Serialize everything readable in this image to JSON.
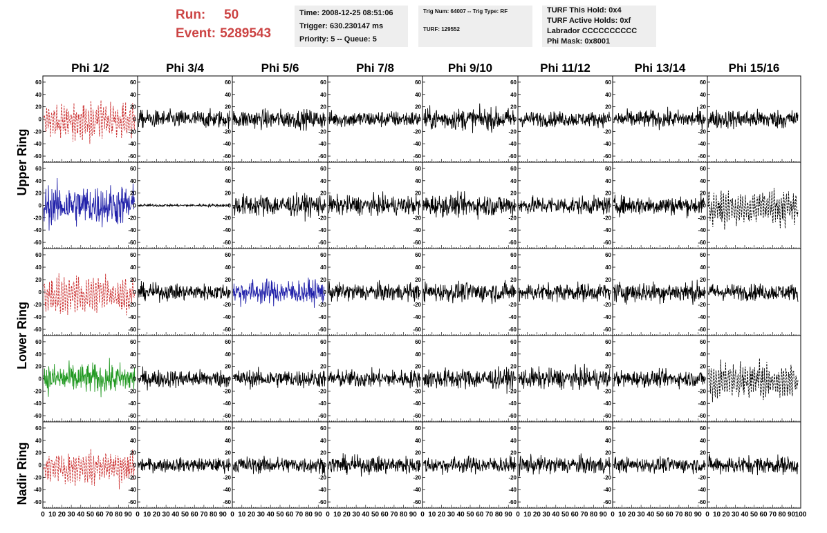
{
  "header": {
    "run_label": "Run:",
    "run_value": "50",
    "event_label": "Event:",
    "event_value": "5289543",
    "box1": [
      "Time: 2008-12-25 08:51:06",
      "Trigger: 630.230147 ms",
      "Priority: 5 -- Queue: 5"
    ],
    "box2": [
      "Trig Num: 64007 -- Trig Type: RF",
      "TURF: 129552"
    ],
    "box3": [
      "TURF This Hold: 0x4",
      "TURF Active Holds: 0xf",
      "Labrador CCCCCCCCCC",
      "Phi Mask: 0x8001"
    ],
    "colors": {
      "run_text": "#cc4444",
      "box_bg": "#eeeeee"
    }
  },
  "chart_data": {
    "type": "line",
    "columns": [
      "Phi 1/2",
      "Phi 3/4",
      "Phi 5/6",
      "Phi 7/8",
      "Phi 9/10",
      "Phi 11/12",
      "Phi 13/14",
      "Phi 15/16"
    ],
    "ring_labels": [
      "Upper Ring",
      "Lower Ring",
      "Nadir Ring"
    ],
    "xlim": [
      0,
      100
    ],
    "ylim": [
      -70,
      70
    ],
    "x_ticks": [
      "0",
      "10",
      "20",
      "30",
      "40",
      "50",
      "60",
      "70",
      "80",
      "90",
      "100"
    ],
    "y_ticks": [
      "-60",
      "-40",
      "-20",
      "0",
      "20",
      "40",
      "60"
    ],
    "grid": false,
    "panels": [
      [
        {
          "style": "red-dash",
          "amp": 26
        },
        {
          "style": "black",
          "amp": 13
        },
        {
          "style": "black",
          "amp": 14
        },
        {
          "style": "black",
          "amp": 12
        },
        {
          "style": "black",
          "amp": 16
        },
        {
          "style": "black",
          "amp": 11
        },
        {
          "style": "black",
          "amp": 13
        },
        {
          "style": "black",
          "amp": 14
        }
      ],
      [
        {
          "style": "blue",
          "amp": 30
        },
        {
          "style": "black",
          "amp": 2
        },
        {
          "style": "black",
          "amp": 16
        },
        {
          "style": "black",
          "amp": 14
        },
        {
          "style": "black",
          "amp": 16
        },
        {
          "style": "black",
          "amp": 13
        },
        {
          "style": "black",
          "amp": 14
        },
        {
          "style": "black-dash",
          "amp": 25
        }
      ],
      [
        {
          "style": "red-dash",
          "amp": 26
        },
        {
          "style": "black",
          "amp": 12
        },
        {
          "style": "blue",
          "amp": 18
        },
        {
          "style": "black",
          "amp": 13
        },
        {
          "style": "black",
          "amp": 14
        },
        {
          "style": "black",
          "amp": 13
        },
        {
          "style": "black",
          "amp": 15
        },
        {
          "style": "black",
          "amp": 12
        }
      ],
      [
        {
          "style": "green",
          "amp": 22
        },
        {
          "style": "black",
          "amp": 13
        },
        {
          "style": "black",
          "amp": 13
        },
        {
          "style": "black",
          "amp": 13
        },
        {
          "style": "black",
          "amp": 15
        },
        {
          "style": "black",
          "amp": 15
        },
        {
          "style": "black",
          "amp": 12
        },
        {
          "style": "black-dash",
          "amp": 27
        }
      ],
      [
        {
          "style": "red-dash",
          "amp": 24
        },
        {
          "style": "black",
          "amp": 10
        },
        {
          "style": "black",
          "amp": 12
        },
        {
          "style": "black",
          "amp": 13
        },
        {
          "style": "black",
          "amp": 12
        },
        {
          "style": "black",
          "amp": 13
        },
        {
          "style": "black",
          "amp": 11
        },
        {
          "style": "black",
          "amp": 13
        }
      ]
    ],
    "trace_colors": {
      "red": "#cc3333",
      "blue": "#2222aa",
      "green": "#229922",
      "black": "#000000"
    }
  }
}
